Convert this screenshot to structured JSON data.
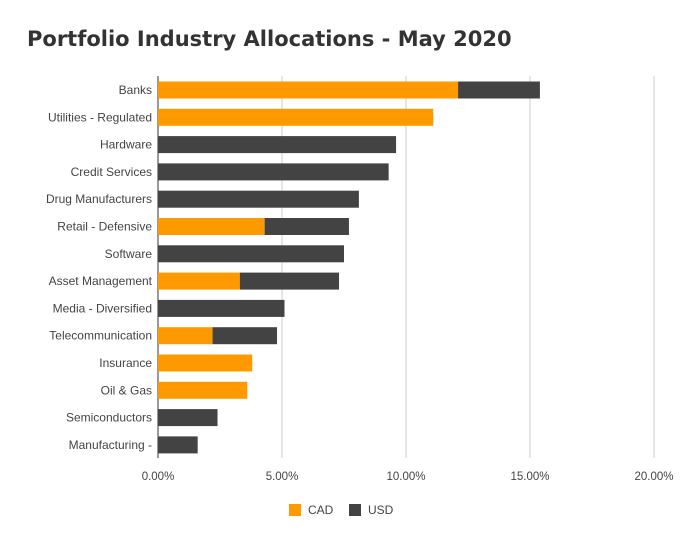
{
  "chart_data": {
    "type": "bar",
    "orientation": "horizontal",
    "stacked": true,
    "title": "Portfolio Industry Allocations - May 2020",
    "categories": [
      "Banks",
      "Utilities - Regulated",
      "Hardware",
      "Credit Services",
      "Drug Manufacturers",
      "Retail - Defensive",
      "Software",
      "Asset Management",
      "Media - Diversified",
      "Telecommunication",
      "Insurance",
      "Oil & Gas",
      "Semiconductors",
      "Manufacturing -"
    ],
    "series": [
      {
        "name": "CAD",
        "color": "#ff9900",
        "values": [
          12.1,
          11.1,
          0,
          0,
          0,
          4.3,
          0,
          3.3,
          0,
          2.2,
          3.8,
          3.6,
          0,
          0
        ]
      },
      {
        "name": "USD",
        "color": "#434343",
        "values": [
          3.3,
          0,
          9.6,
          9.3,
          8.1,
          3.4,
          7.5,
          4.0,
          5.1,
          2.6,
          0,
          0,
          2.4,
          1.6
        ]
      }
    ],
    "xlim": [
      0,
      20
    ],
    "ticks": [
      "0.00%",
      "5.00%",
      "10.00%",
      "15.00%",
      "20.00%"
    ],
    "tick_values": [
      0,
      5,
      10,
      15,
      20
    ],
    "grid": true,
    "legend_position": "bottom"
  }
}
